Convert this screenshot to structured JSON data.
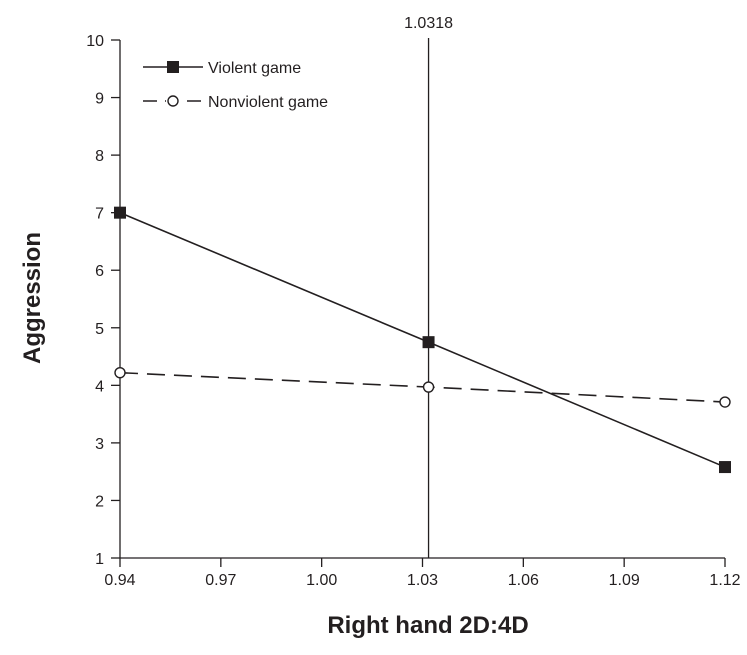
{
  "chart_data": {
    "type": "line",
    "title": "",
    "xlabel": "Right hand 2D:4D",
    "ylabel": "Aggression",
    "xlim": [
      0.94,
      1.12
    ],
    "ylim": [
      1,
      10
    ],
    "x_ticks": [
      "0.94",
      "0.97",
      "1.00",
      "1.03",
      "1.06",
      "1.09",
      "1.12"
    ],
    "y_ticks": [
      "1",
      "2",
      "3",
      "4",
      "5",
      "6",
      "7",
      "8",
      "9",
      "10"
    ],
    "grid": false,
    "legend_position": "top-left",
    "reference_line": {
      "x": 1.0318,
      "label": "1.0318"
    },
    "series": [
      {
        "name": "Violent game",
        "style": "solid",
        "marker": "filled-square",
        "color": "#231f20",
        "points": [
          {
            "x": 0.94,
            "y": 7.0
          },
          {
            "x": 1.0318,
            "y": 4.75
          },
          {
            "x": 1.12,
            "y": 2.58
          }
        ]
      },
      {
        "name": "Nonviolent game",
        "style": "dashed",
        "marker": "open-circle",
        "color": "#231f20",
        "points": [
          {
            "x": 0.94,
            "y": 4.22
          },
          {
            "x": 1.0318,
            "y": 3.97
          },
          {
            "x": 1.12,
            "y": 3.71
          }
        ]
      }
    ]
  }
}
